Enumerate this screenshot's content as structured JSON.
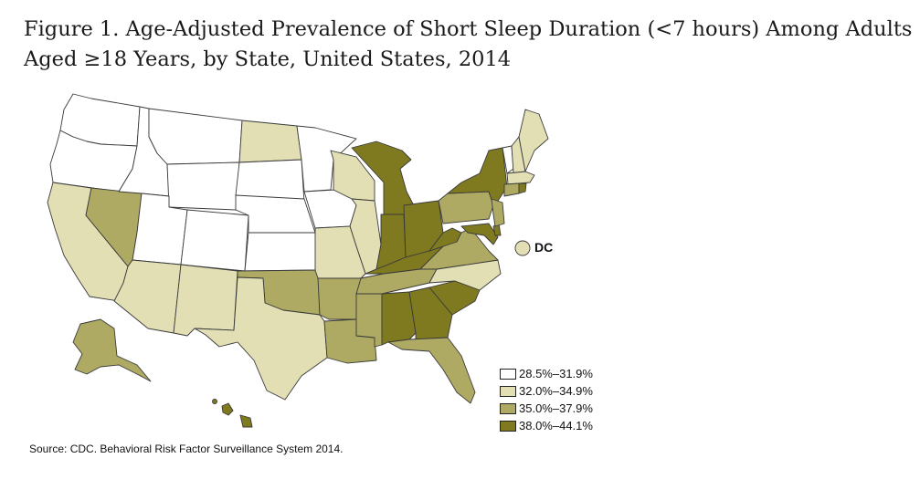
{
  "title": "Figure 1. Age-Adjusted Prevalence of Short Sleep Duration (<7 hours) Among Adults\nAged ≥18 Years, by State, United States, 2014",
  "legend": [
    {
      "label": "28.5%–31.9%",
      "color": "#ffffff"
    },
    {
      "label": "32.0%–34.9%",
      "color": "#e2dfb4"
    },
    {
      "label": "35.0%–37.9%",
      "color": "#aeaa64"
    },
    {
      "label": "38.0%–44.1%",
      "color": "#7f7a1f"
    }
  ],
  "dc_label": "DC",
  "source": "Source: CDC. Behavioral Risk Factor Surveillance System 2014.",
  "state_classes": {
    "WA": 0,
    "OR": 0,
    "ID": 0,
    "MT": 0,
    "WY": 0,
    "UT": 0,
    "CO": 0,
    "NE": 0,
    "KS": 0,
    "SD": 0,
    "MN": 0,
    "IA": 0,
    "VT": 0,
    "CA": 1,
    "AZ": 1,
    "NM": 1,
    "TX": 1,
    "ND": 1,
    "WI": 1,
    "IL": 1,
    "MO": 1,
    "NC": 1,
    "ME": 1,
    "NH": 1,
    "MA": 1,
    "DC": 1,
    "NV": 2,
    "OK": 2,
    "AR": 2,
    "LA": 2,
    "MS": 2,
    "TN": 2,
    "FL": 2,
    "VA": 2,
    "PA": 2,
    "NJ": 2,
    "CT": 2,
    "AK": 2,
    "MI": 3,
    "IN": 3,
    "OH": 3,
    "KY": 3,
    "WV": 3,
    "AL": 3,
    "GA": 3,
    "SC": 3,
    "NY": 3,
    "MD": 3,
    "DE": 3,
    "RI": 3,
    "HI": 3
  }
}
